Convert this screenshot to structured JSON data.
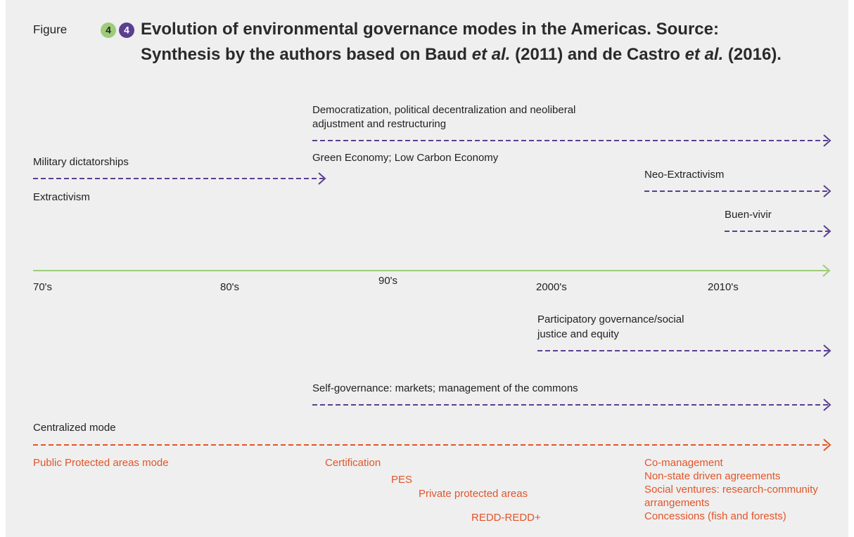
{
  "header": {
    "label": "Figure",
    "badges": [
      "4",
      "4"
    ],
    "title": [
      [
        "Evolution of environmental governance modes in the Americas. Source:"
      ],
      [
        "Synthesis by the authors based on Baud ",
        "et al.",
        " (2011) and de Castro ",
        "et al.",
        " (2016)."
      ]
    ]
  },
  "context": [
    {
      "lines": [
        "Democratization, political decentralization and neoliberal",
        "adjustment and restructuring"
      ]
    },
    {
      "lines": [
        "Green Economy; Low Carbon Economy"
      ]
    },
    {
      "lines": [
        "Military dictatorships"
      ]
    },
    {
      "lines": [
        "Extractivism"
      ]
    },
    {
      "lines": [
        "Neo-Extractivism"
      ]
    },
    {
      "lines": [
        "Buen-vivir"
      ]
    }
  ],
  "timeline": [
    "70's",
    "80's",
    "90's",
    "2000's",
    "2010's"
  ],
  "governance": [
    {
      "lines": [
        "Participatory governance/social",
        "justice and equity"
      ]
    },
    {
      "lines": [
        "Self-governance: markets; management of the commons"
      ]
    },
    {
      "lines": [
        "Centralized mode"
      ]
    }
  ],
  "instruments": [
    {
      "lines": [
        "Public Protected areas mode"
      ]
    },
    {
      "lines": [
        "Certification"
      ]
    },
    {
      "lines": [
        "PES"
      ]
    },
    {
      "lines": [
        "Private protected areas"
      ]
    },
    {
      "lines": [
        "REDD-REDD+"
      ]
    },
    {
      "lines": [
        "Co-management",
        "Non-state driven agreements",
        "Social ventures: research-community",
        "arrangements",
        "Concessions (fish and forests)"
      ]
    }
  ]
}
